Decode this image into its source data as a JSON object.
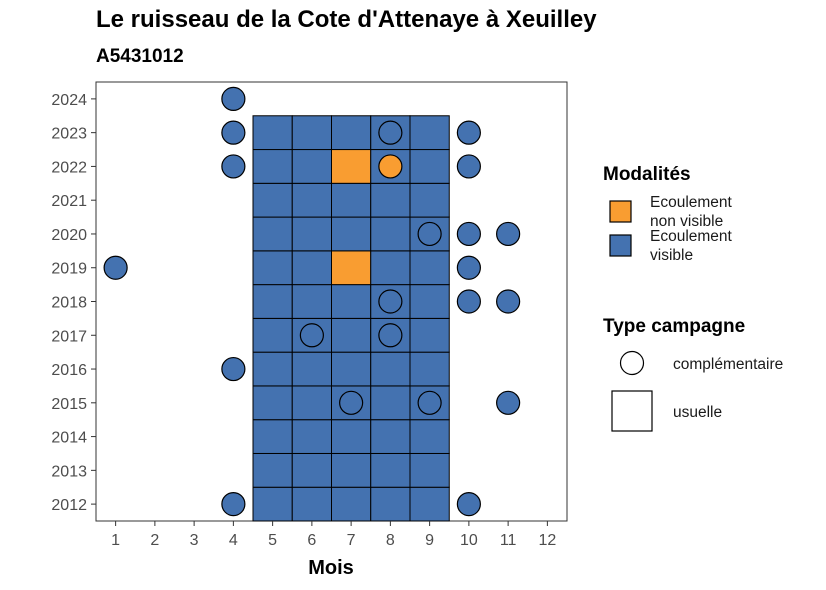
{
  "chart_data": {
    "type": "heatmap",
    "title": "Le ruisseau de la Cote d'Attenaye à Xeuilley",
    "subtitle": "A5431012",
    "xlabel": "Mois",
    "ylabel": "",
    "x_ticks": [
      1,
      2,
      3,
      4,
      5,
      6,
      7,
      8,
      9,
      10,
      11,
      12
    ],
    "y_ticks": [
      2012,
      2013,
      2014,
      2015,
      2016,
      2017,
      2018,
      2019,
      2020,
      2021,
      2022,
      2023,
      2024
    ],
    "xlim": [
      0.5,
      12.5
    ],
    "ylim": [
      2011.5,
      2024.5
    ],
    "grid": false,
    "legend_position": "right",
    "colors": {
      "visible": "#4472b0",
      "non_visible": "#f99d31"
    },
    "legends": [
      {
        "title": "Modalités",
        "entries": [
          {
            "key": "non_visible",
            "label_lines": [
              "Ecoulement",
              "non visible"
            ],
            "color": "#f99d31"
          },
          {
            "key": "visible",
            "label_lines": [
              "Ecoulement",
              "visible"
            ],
            "color": "#4472b0"
          }
        ]
      },
      {
        "title": "Type campagne",
        "entries": [
          {
            "key": "complementaire",
            "label": "complémentaire",
            "shape": "circle"
          },
          {
            "key": "usuelle",
            "label": "usuelle",
            "shape": "square"
          }
        ]
      }
    ],
    "usuelle_tiles": {
      "months": [
        5,
        6,
        7,
        8,
        9
      ],
      "years": [
        2012,
        2013,
        2014,
        2015,
        2016,
        2017,
        2018,
        2019,
        2020,
        2021,
        2022,
        2023
      ],
      "default": "visible",
      "exceptions": [
        {
          "month": 7,
          "year": 2022,
          "value": "non_visible"
        },
        {
          "month": 7,
          "year": 2019,
          "value": "non_visible"
        }
      ]
    },
    "complementaire_points": [
      {
        "month": 4,
        "year": 2024,
        "value": "visible"
      },
      {
        "month": 4,
        "year": 2023,
        "value": "visible"
      },
      {
        "month": 8,
        "year": 2023,
        "value": "visible"
      },
      {
        "month": 10,
        "year": 2023,
        "value": "visible"
      },
      {
        "month": 4,
        "year": 2022,
        "value": "visible"
      },
      {
        "month": 8,
        "year": 2022,
        "value": "non_visible"
      },
      {
        "month": 10,
        "year": 2022,
        "value": "visible"
      },
      {
        "month": 9,
        "year": 2020,
        "value": "visible"
      },
      {
        "month": 10,
        "year": 2020,
        "value": "visible"
      },
      {
        "month": 11,
        "year": 2020,
        "value": "visible"
      },
      {
        "month": 1,
        "year": 2019,
        "value": "visible"
      },
      {
        "month": 10,
        "year": 2019,
        "value": "visible"
      },
      {
        "month": 8,
        "year": 2018,
        "value": "visible"
      },
      {
        "month": 10,
        "year": 2018,
        "value": "visible"
      },
      {
        "month": 11,
        "year": 2018,
        "value": "visible"
      },
      {
        "month": 6,
        "year": 2017,
        "value": "visible"
      },
      {
        "month": 8,
        "year": 2017,
        "value": "visible"
      },
      {
        "month": 4,
        "year": 2016,
        "value": "visible"
      },
      {
        "month": 7,
        "year": 2015,
        "value": "visible"
      },
      {
        "month": 9,
        "year": 2015,
        "value": "visible"
      },
      {
        "month": 11,
        "year": 2015,
        "value": "visible"
      },
      {
        "month": 4,
        "year": 2012,
        "value": "visible"
      },
      {
        "month": 10,
        "year": 2012,
        "value": "visible"
      }
    ]
  }
}
